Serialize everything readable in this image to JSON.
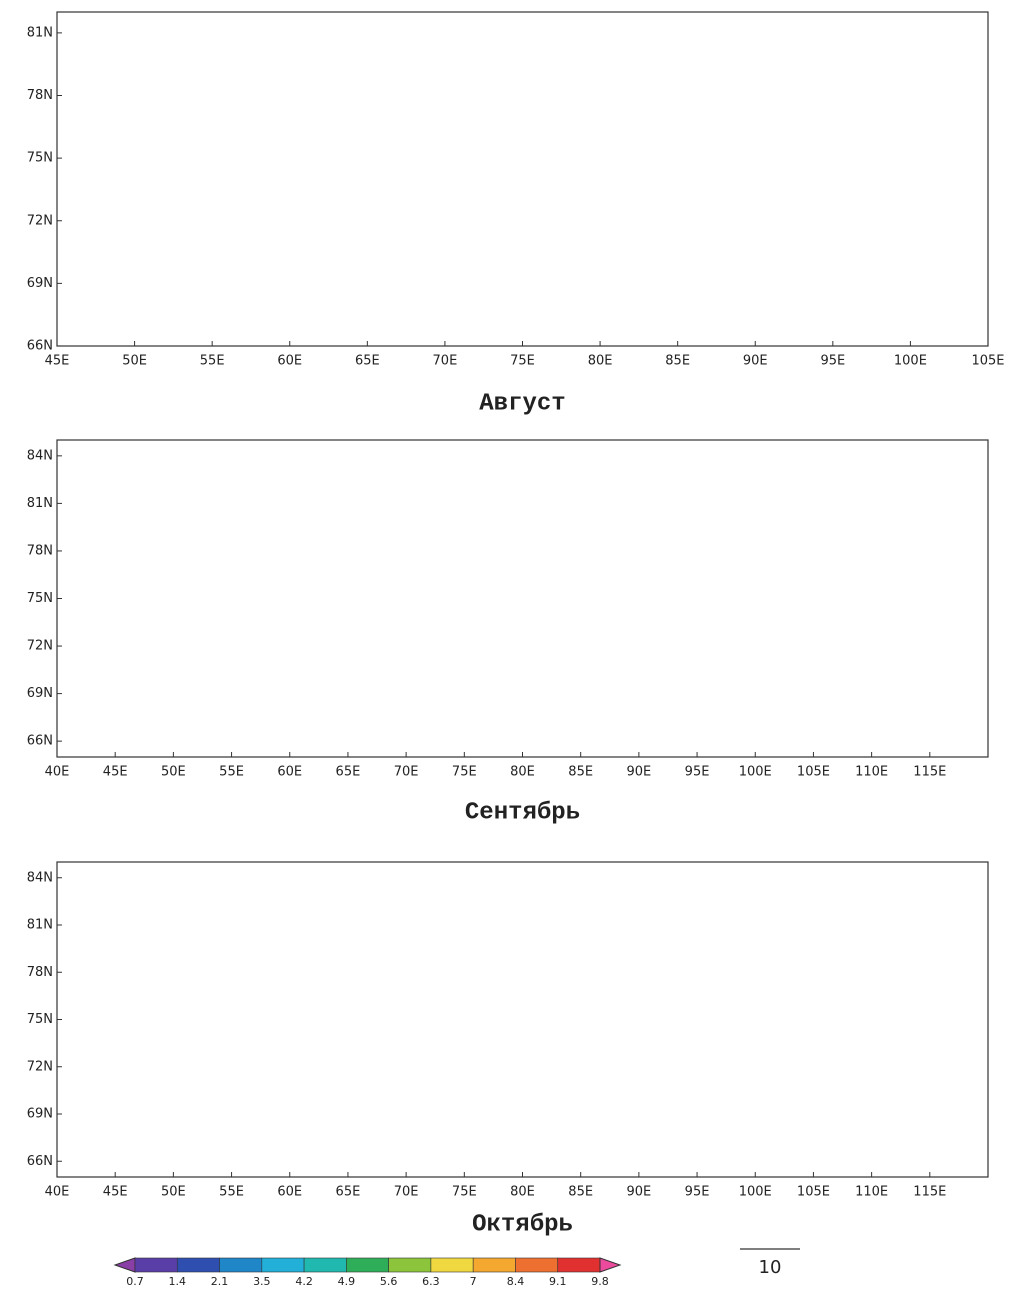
{
  "chart_data": [
    {
      "type": "vector",
      "title": "Август",
      "xlim": [
        45,
        105
      ],
      "ylim": [
        66,
        82
      ],
      "xticks": [
        {
          "value": 45,
          "label": "45E"
        },
        {
          "value": 50,
          "label": "50E"
        },
        {
          "value": 55,
          "label": "55E"
        },
        {
          "value": 60,
          "label": "60E"
        },
        {
          "value": 65,
          "label": "65E"
        },
        {
          "value": 70,
          "label": "70E"
        },
        {
          "value": 75,
          "label": "75E"
        },
        {
          "value": 80,
          "label": "80E"
        },
        {
          "value": 85,
          "label": "85E"
        },
        {
          "value": 90,
          "label": "90E"
        },
        {
          "value": 95,
          "label": "95E"
        },
        {
          "value": 100,
          "label": "100E"
        },
        {
          "value": 105,
          "label": "105E"
        }
      ],
      "yticks": [
        {
          "value": 66,
          "label": "66N"
        },
        {
          "value": 69,
          "label": "69N"
        },
        {
          "value": 72,
          "label": "72N"
        },
        {
          "value": 75,
          "label": "75N"
        },
        {
          "value": 78,
          "label": "78N"
        },
        {
          "value": 81,
          "label": "81N"
        }
      ]
    },
    {
      "type": "vector",
      "title": "Сентябрь",
      "xlim": [
        40,
        120
      ],
      "ylim": [
        65,
        85
      ],
      "xticks": [
        {
          "value": 40,
          "label": "40E"
        },
        {
          "value": 45,
          "label": "45E"
        },
        {
          "value": 50,
          "label": "50E"
        },
        {
          "value": 55,
          "label": "55E"
        },
        {
          "value": 60,
          "label": "60E"
        },
        {
          "value": 65,
          "label": "65E"
        },
        {
          "value": 70,
          "label": "70E"
        },
        {
          "value": 75,
          "label": "75E"
        },
        {
          "value": 80,
          "label": "80E"
        },
        {
          "value": 85,
          "label": "85E"
        },
        {
          "value": 90,
          "label": "90E"
        },
        {
          "value": 95,
          "label": "95E"
        },
        {
          "value": 100,
          "label": "100E"
        },
        {
          "value": 105,
          "label": "105E"
        },
        {
          "value": 110,
          "label": "110E"
        },
        {
          "value": 115,
          "label": "115E"
        }
      ],
      "yticks": [
        {
          "value": 66,
          "label": "66N"
        },
        {
          "value": 69,
          "label": "69N"
        },
        {
          "value": 72,
          "label": "72N"
        },
        {
          "value": 75,
          "label": "75N"
        },
        {
          "value": 78,
          "label": "78N"
        },
        {
          "value": 81,
          "label": "81N"
        },
        {
          "value": 84,
          "label": "84N"
        }
      ]
    },
    {
      "type": "vector",
      "title": "Октябрь",
      "xlim": [
        40,
        120
      ],
      "ylim": [
        65,
        85
      ],
      "xticks": [
        {
          "value": 40,
          "label": "40E"
        },
        {
          "value": 45,
          "label": "45E"
        },
        {
          "value": 50,
          "label": "50E"
        },
        {
          "value": 55,
          "label": "55E"
        },
        {
          "value": 60,
          "label": "60E"
        },
        {
          "value": 65,
          "label": "65E"
        },
        {
          "value": 70,
          "label": "70E"
        },
        {
          "value": 75,
          "label": "75E"
        },
        {
          "value": 80,
          "label": "80E"
        },
        {
          "value": 85,
          "label": "85E"
        },
        {
          "value": 90,
          "label": "90E"
        },
        {
          "value": 95,
          "label": "95E"
        },
        {
          "value": 100,
          "label": "100E"
        },
        {
          "value": 105,
          "label": "105E"
        },
        {
          "value": 110,
          "label": "110E"
        },
        {
          "value": 115,
          "label": "115E"
        }
      ],
      "yticks": [
        {
          "value": 66,
          "label": "66N"
        },
        {
          "value": 69,
          "label": "69N"
        },
        {
          "value": 72,
          "label": "72N"
        },
        {
          "value": 75,
          "label": "75N"
        },
        {
          "value": 78,
          "label": "78N"
        },
        {
          "value": 81,
          "label": "81N"
        },
        {
          "value": 84,
          "label": "84N"
        }
      ]
    }
  ],
  "colorbar": {
    "levels": [
      0.7,
      1.4,
      2.1,
      3.5,
      4.2,
      4.9,
      5.6,
      6.3,
      7,
      8.4,
      9.1,
      9.8
    ],
    "colors": [
      "#8a3fa6",
      "#5a3ea8",
      "#2f4fb0",
      "#1f86c8",
      "#22b0d8",
      "#21b8b0",
      "#2fae5a",
      "#8cc43c",
      "#f0d840",
      "#f4a830",
      "#ee7030",
      "#e03030",
      "#ec4a9c"
    ]
  },
  "reference_vector": {
    "value": 10
  }
}
